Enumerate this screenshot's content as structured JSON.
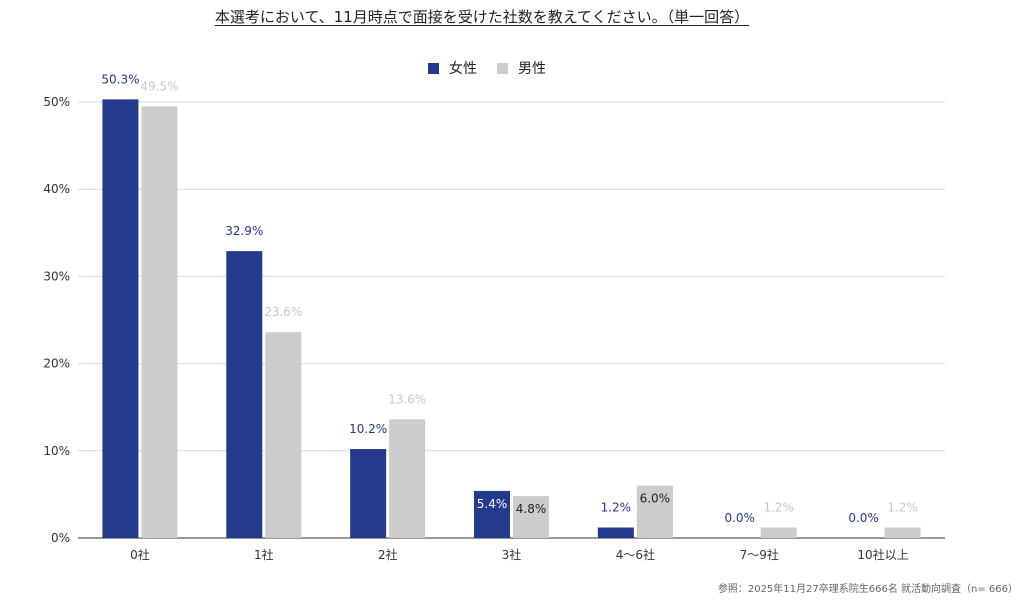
{
  "chart_data": {
    "type": "bar",
    "title": "本選考において、11月時点で面接を受けた社数を教えてください。（単一回答）",
    "categories": [
      "0社",
      "1社",
      "2社",
      "3社",
      "4〜6社",
      "7〜9社",
      "10社以上"
    ],
    "series": [
      {
        "name": "女性",
        "values": [
          50.3,
          32.9,
          10.2,
          5.4,
          1.2,
          0.0,
          0.0
        ],
        "color": "#243a8c"
      },
      {
        "name": "男性",
        "values": [
          49.5,
          23.6,
          13.6,
          4.8,
          6.0,
          1.2,
          1.2
        ],
        "color": "#cccccc"
      }
    ],
    "data_labels_female": [
      "50.3%",
      "32.9%",
      "10.2%",
      "5.4%",
      "1.2%",
      "0.0%",
      "0.0%"
    ],
    "data_labels_male": [
      "49.5%",
      "23.6%",
      "13.6%",
      "4.8%",
      "6.0%",
      "1.2%",
      "1.2%"
    ],
    "ylim": [
      0,
      50
    ],
    "yticks": [
      "0%",
      "10%",
      "20%",
      "30%",
      "40%",
      "50%"
    ],
    "grid": true,
    "legend_position": "top-center"
  },
  "source_note": "参照：2025年11月27卒理系院生666名 就活動向調査（n= 666）"
}
